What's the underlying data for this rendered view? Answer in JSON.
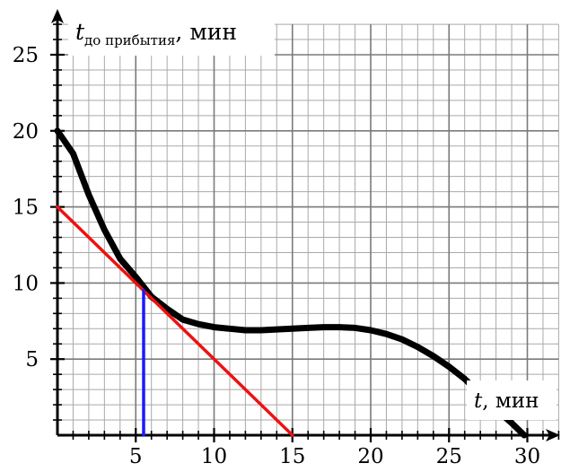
{
  "chart_data": {
    "type": "line",
    "xlim": [
      0,
      32
    ],
    "ylim": [
      0,
      27
    ],
    "grid": true,
    "x_ticks": [
      5,
      10,
      15,
      20,
      25,
      30
    ],
    "y_ticks": [
      5,
      10,
      15,
      20,
      25
    ],
    "x_label": {
      "var": "t",
      "unit": "мин"
    },
    "y_label": {
      "var": "t",
      "subscript": "до прибытия",
      "unit": "мин"
    },
    "series": [
      {
        "color": "#000000",
        "points": [
          [
            0,
            20
          ],
          [
            1,
            18.5
          ],
          [
            2,
            15.8
          ],
          [
            3,
            13.5
          ],
          [
            4,
            11.6
          ],
          [
            5,
            10.4
          ],
          [
            6,
            9.1
          ],
          [
            7,
            8.3
          ],
          [
            8,
            7.6
          ],
          [
            9,
            7.3
          ],
          [
            10,
            7.1
          ],
          [
            11,
            7.0
          ],
          [
            12,
            6.9
          ],
          [
            13,
            6.9
          ],
          [
            14,
            6.95
          ],
          [
            15,
            7.0
          ],
          [
            16,
            7.05
          ],
          [
            17,
            7.1
          ],
          [
            18,
            7.1
          ],
          [
            19,
            7.05
          ],
          [
            20,
            6.9
          ],
          [
            21,
            6.65
          ],
          [
            22,
            6.3
          ],
          [
            23,
            5.8
          ],
          [
            24,
            5.2
          ],
          [
            25,
            4.5
          ],
          [
            26,
            3.7
          ],
          [
            27,
            2.7
          ],
          [
            28,
            1.7
          ],
          [
            29,
            0.8
          ],
          [
            29.8,
            0
          ]
        ]
      },
      {
        "color": "#ee1111",
        "points": [
          [
            0,
            15
          ],
          [
            15,
            0
          ]
        ]
      },
      {
        "color": "#1a1aff",
        "points": [
          [
            5.5,
            9.5
          ],
          [
            5.5,
            0
          ]
        ]
      }
    ]
  }
}
